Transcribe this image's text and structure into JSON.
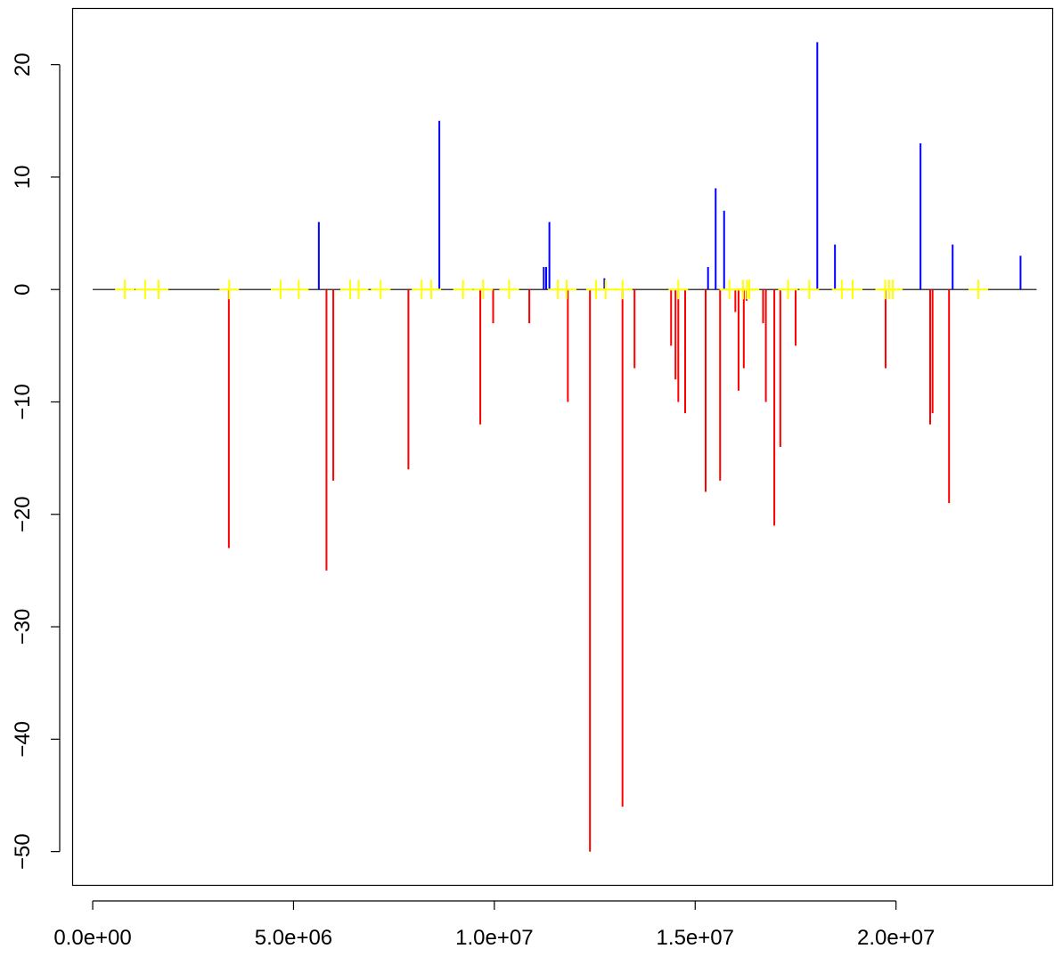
{
  "chart_data": {
    "type": "bar",
    "title": "",
    "xlabel": "",
    "ylabel": "",
    "xlim": [
      -500000,
      23900000
    ],
    "ylim": [
      -53,
      25
    ],
    "x_ticks": [
      {
        "value": 0,
        "label": "0.0e+00"
      },
      {
        "value": 5000000,
        "label": "5.0e+06"
      },
      {
        "value": 10000000,
        "label": "1.0e+07"
      },
      {
        "value": 15000000,
        "label": "1.5e+07"
      },
      {
        "value": 20000000,
        "label": "2.0e+07"
      }
    ],
    "y_ticks": [
      {
        "value": -50,
        "label": "−50"
      },
      {
        "value": -40,
        "label": "−40"
      },
      {
        "value": -30,
        "label": "−30"
      },
      {
        "value": -20,
        "label": "−20"
      },
      {
        "value": -10,
        "label": "−10"
      },
      {
        "value": 0,
        "label": "0"
      },
      {
        "value": 10,
        "label": "10"
      },
      {
        "value": 20,
        "label": "20"
      }
    ],
    "baseline": {
      "from": 0,
      "to": 23500000,
      "y": 0,
      "color": "#000000"
    },
    "colors": {
      "positive": "#0000ff",
      "negative": "#ff0000",
      "marker": "#ffff00"
    },
    "series": [
      {
        "values_kind": "positive",
        "points": [
          {
            "x": 5630000,
            "y": 6
          },
          {
            "x": 8630000,
            "y": 15
          },
          {
            "x": 11230000,
            "y": 2
          },
          {
            "x": 11290000,
            "y": 2
          },
          {
            "x": 11370000,
            "y": 6
          },
          {
            "x": 12740000,
            "y": 1
          },
          {
            "x": 15320000,
            "y": 2
          },
          {
            "x": 15510000,
            "y": 9
          },
          {
            "x": 15720000,
            "y": 7
          },
          {
            "x": 18040000,
            "y": 22
          },
          {
            "x": 18480000,
            "y": 4
          },
          {
            "x": 20610000,
            "y": 13
          },
          {
            "x": 21410000,
            "y": 4
          },
          {
            "x": 23100000,
            "y": 3
          }
        ]
      },
      {
        "values_kind": "negative",
        "points": [
          {
            "x": 3390000,
            "y": -23
          },
          {
            "x": 5820000,
            "y": -25
          },
          {
            "x": 5990000,
            "y": -17
          },
          {
            "x": 7860000,
            "y": -16
          },
          {
            "x": 9650000,
            "y": -12
          },
          {
            "x": 9970000,
            "y": -3
          },
          {
            "x": 10870000,
            "y": -3
          },
          {
            "x": 11830000,
            "y": -10
          },
          {
            "x": 12380000,
            "y": -50
          },
          {
            "x": 13190000,
            "y": -46
          },
          {
            "x": 13490000,
            "y": -7
          },
          {
            "x": 14400000,
            "y": -5
          },
          {
            "x": 14510000,
            "y": -8
          },
          {
            "x": 14580000,
            "y": -10
          },
          {
            "x": 14750000,
            "y": -11
          },
          {
            "x": 15260000,
            "y": -18
          },
          {
            "x": 15620000,
            "y": -17
          },
          {
            "x": 16000000,
            "y": -2
          },
          {
            "x": 16080000,
            "y": -9
          },
          {
            "x": 16210000,
            "y": -7
          },
          {
            "x": 16280000,
            "y": -1
          },
          {
            "x": 16690000,
            "y": -3
          },
          {
            "x": 16760000,
            "y": -10
          },
          {
            "x": 16970000,
            "y": -21
          },
          {
            "x": 17120000,
            "y": -14
          },
          {
            "x": 17500000,
            "y": -5
          },
          {
            "x": 19740000,
            "y": -7
          },
          {
            "x": 20850000,
            "y": -12
          },
          {
            "x": 20910000,
            "y": -11
          },
          {
            "x": 21320000,
            "y": -19
          }
        ]
      }
    ],
    "markers": {
      "shape": "plus",
      "y": 0,
      "x": [
        800000,
        1310000,
        1640000,
        3400000,
        4680000,
        5130000,
        6410000,
        6620000,
        7170000,
        8190000,
        8430000,
        9220000,
        9720000,
        10370000,
        11580000,
        11800000,
        12530000,
        12770000,
        13190000,
        14580000,
        15850000,
        16190000,
        16290000,
        16350000,
        17310000,
        17840000,
        18650000,
        18920000,
        19730000,
        19830000,
        19920000,
        22050000
      ]
    }
  }
}
